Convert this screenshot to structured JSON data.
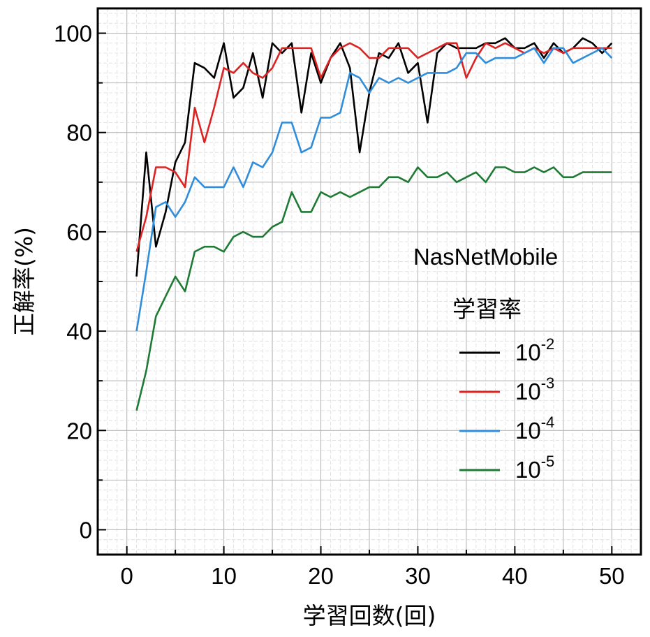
{
  "chart_data": {
    "type": "line",
    "xlabel": "学習回数(回)",
    "ylabel": "正解率(%)",
    "xlim": [
      -3,
      53
    ],
    "ylim": [
      -5,
      105
    ],
    "xticks": [
      "0",
      "10",
      "20",
      "30",
      "40",
      "50"
    ],
    "yticks": [
      "0",
      "20",
      "40",
      "60",
      "80",
      "100"
    ],
    "grid": true,
    "annotation": "NasNetMobile",
    "legend_title": "学習率",
    "legend_position": "right",
    "x": [
      1,
      2,
      3,
      4,
      5,
      6,
      7,
      8,
      9,
      10,
      11,
      12,
      13,
      14,
      15,
      16,
      17,
      18,
      19,
      20,
      21,
      22,
      23,
      24,
      25,
      26,
      27,
      28,
      29,
      30,
      31,
      32,
      33,
      34,
      35,
      36,
      37,
      38,
      39,
      40,
      41,
      42,
      43,
      44,
      45,
      46,
      47,
      48,
      49,
      50
    ],
    "series": [
      {
        "name": "10",
        "exponent": "-2",
        "color": "#000000",
        "values": [
          51,
          76,
          57,
          64,
          74,
          78,
          94,
          93,
          91,
          98,
          87,
          89,
          96,
          87,
          98,
          96,
          98,
          84,
          96,
          90,
          95,
          98,
          93,
          76,
          88,
          96,
          95,
          98,
          92,
          94,
          82,
          96,
          98,
          97,
          97,
          97,
          98,
          98,
          99,
          97,
          97,
          98,
          95,
          98,
          96,
          97,
          99,
          98,
          96,
          98
        ]
      },
      {
        "name": "10",
        "exponent": "-3",
        "color": "#dd2222",
        "values": [
          56,
          63,
          73,
          73,
          72,
          69,
          85,
          78,
          85,
          93,
          92,
          94,
          92,
          91,
          93,
          97,
          97,
          97,
          97,
          91,
          95,
          97,
          98,
          97,
          95,
          95,
          97,
          97,
          97,
          95,
          96,
          97,
          98,
          98,
          91,
          95,
          98,
          97,
          98,
          97,
          96,
          97,
          96,
          97,
          96,
          97,
          97,
          97,
          97,
          97
        ]
      },
      {
        "name": "10",
        "exponent": "-4",
        "color": "#2f8ddb",
        "values": [
          40,
          52,
          65,
          66,
          63,
          66,
          71,
          69,
          69,
          69,
          73,
          69,
          74,
          73,
          76,
          82,
          82,
          76,
          77,
          83,
          83,
          84,
          92,
          91,
          88,
          91,
          90,
          91,
          90,
          91,
          92,
          92,
          92,
          93,
          96,
          96,
          94,
          95,
          95,
          95,
          96,
          97,
          94,
          97,
          97,
          94,
          95,
          96,
          97,
          95
        ]
      },
      {
        "name": "10",
        "exponent": "-5",
        "color": "#1e7a34",
        "values": [
          24,
          32,
          43,
          47,
          51,
          48,
          56,
          57,
          57,
          56,
          59,
          60,
          59,
          59,
          61,
          62,
          68,
          64,
          64,
          68,
          67,
          68,
          67,
          68,
          69,
          69,
          71,
          71,
          70,
          73,
          71,
          71,
          72,
          70,
          71,
          72,
          70,
          73,
          73,
          72,
          72,
          73,
          72,
          73,
          71,
          71,
          72,
          72,
          72,
          72
        ]
      }
    ]
  }
}
